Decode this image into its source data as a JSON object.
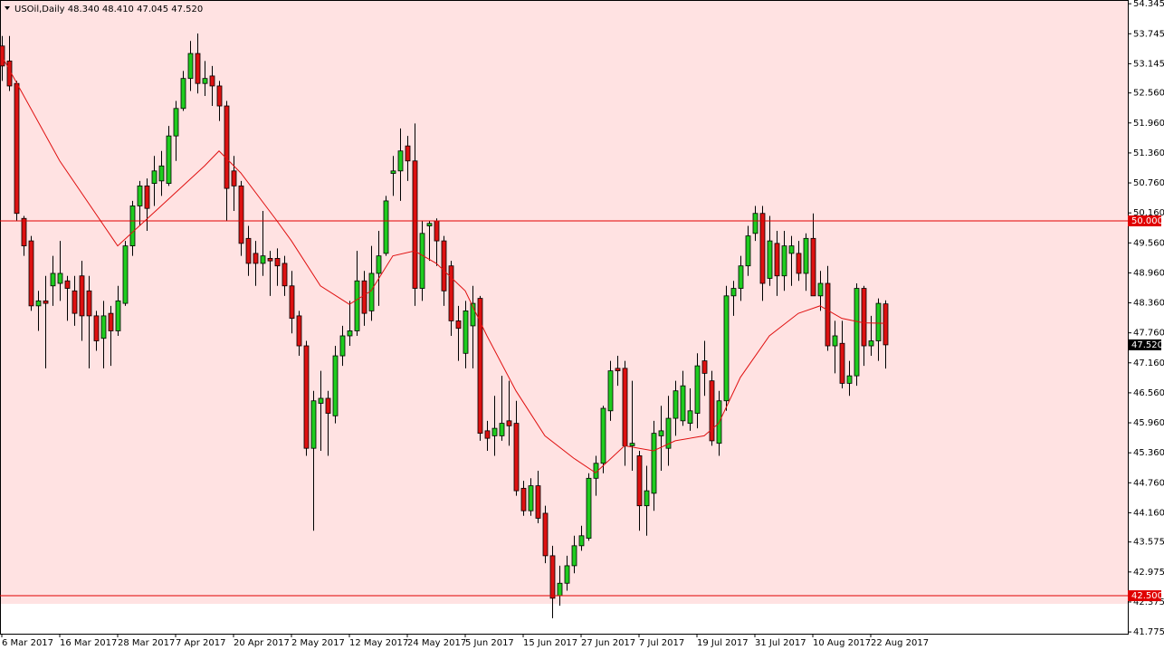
{
  "chart_data": {
    "type": "candlestick",
    "title": "USOil,Daily  48.340 48.410 47.045 47.520",
    "categories": [
      "6 Mar 2017",
      null,
      null,
      null,
      null,
      null,
      null,
      null,
      "16 Mar 2017",
      null,
      null,
      null,
      null,
      null,
      null,
      null,
      "28 Mar 2017",
      null,
      null,
      null,
      null,
      null,
      null,
      null,
      "7 Apr 2017",
      null,
      null,
      null,
      null,
      null,
      null,
      null,
      "20 Apr 2017",
      null,
      null,
      null,
      null,
      null,
      null,
      null,
      "2 May 2017",
      null,
      null,
      null,
      null,
      null,
      null,
      null,
      "12 May 2017",
      null,
      null,
      null,
      null,
      null,
      null,
      null,
      "24 May 2017",
      null,
      null,
      null,
      null,
      null,
      null,
      null,
      "5 Jun 2017",
      null,
      null,
      null,
      null,
      null,
      null,
      null,
      "15 Jun 2017",
      null,
      null,
      null,
      null,
      null,
      null,
      null,
      "27 Jun 2017",
      null,
      null,
      null,
      null,
      null,
      null,
      null,
      "7 Jul 2017",
      null,
      null,
      null,
      null,
      null,
      null,
      null,
      "19 Jul 2017",
      null,
      null,
      null,
      null,
      null,
      null,
      null,
      "31 Jul 2017",
      null,
      null,
      null,
      null,
      null,
      null,
      null,
      "10 Aug 2017",
      null,
      null,
      null,
      null,
      null,
      null,
      null,
      "22 Aug 2017",
      null,
      null
    ],
    "open": [
      53.5,
      53.2,
      52.75,
      50.05,
      49.6,
      48.3,
      48.4,
      48.7,
      48.75,
      48.8,
      48.6,
      48.9,
      48.6,
      48.1,
      47.65,
      48.15,
      47.8,
      48.35,
      49.5,
      50.3,
      50.7,
      50.75,
      50.8,
      50.75,
      51.7,
      52.25,
      52.85,
      53.35,
      52.75,
      52.9,
      52.7,
      52.3,
      51.0,
      50.7,
      49.65,
      49.35,
      49.15,
      49.25,
      49.25,
      49.15,
      48.7,
      48.1,
      47.5,
      45.45,
      46.35,
      46.45,
      46.1,
      47.3,
      47.7,
      47.8,
      48.8,
      48.2,
      48.95,
      49.35,
      50.95,
      51.0,
      51.5,
      51.2,
      48.65,
      49.9,
      50.0,
      49.6,
      49.1,
      48.0,
      47.35,
      47.9,
      48.45,
      45.8,
      45.7,
      45.7,
      46.0,
      45.95,
      44.65,
      44.2,
      44.7,
      44.15,
      43.3,
      42.5,
      42.75,
      43.1,
      43.5,
      43.65,
      44.85,
      45.15,
      46.2,
      47.05,
      47.05,
      45.5,
      45.3,
      44.3,
      44.55,
      45.7,
      45.45,
      46.05,
      46.0,
      45.95,
      46.15,
      47.2,
      46.8,
      45.55,
      46.4,
      48.5,
      48.65,
      49.1,
      49.75,
      50.15,
      48.85,
      49.55,
      48.9,
      49.35,
      49.35,
      48.95,
      49.65,
      48.5,
      48.75,
      47.5,
      47.55,
      46.75,
      46.9,
      48.65,
      47.5,
      47.6,
      48.34
    ],
    "high": [
      53.7,
      53.7,
      52.8,
      50.1,
      49.7,
      48.6,
      48.9,
      49.3,
      49.6,
      48.9,
      48.9,
      49.2,
      48.9,
      48.2,
      48.4,
      48.3,
      48.7,
      49.6,
      50.4,
      50.8,
      50.85,
      51.3,
      51.4,
      51.9,
      52.4,
      53.0,
      53.6,
      53.75,
      53.2,
      53.1,
      52.8,
      52.4,
      51.3,
      50.8,
      49.9,
      49.6,
      50.2,
      49.4,
      49.45,
      49.3,
      49.0,
      48.2,
      47.6,
      46.6,
      47.0,
      46.6,
      47.5,
      47.9,
      48.4,
      49.4,
      49.0,
      49.5,
      49.8,
      50.5,
      51.3,
      51.85,
      51.7,
      51.95,
      50.0,
      50.0,
      50.05,
      49.7,
      49.2,
      48.3,
      48.4,
      48.7,
      48.5,
      46.0,
      46.5,
      46.9,
      46.8,
      46.4,
      44.8,
      44.85,
      45.0,
      44.3,
      43.5,
      43.1,
      43.3,
      43.7,
      43.9,
      44.95,
      45.3,
      46.3,
      47.2,
      47.3,
      47.2,
      46.8,
      45.4,
      45.1,
      46.0,
      46.3,
      46.5,
      46.8,
      47.0,
      46.65,
      47.35,
      47.6,
      47.0,
      46.6,
      48.7,
      48.8,
      49.3,
      49.9,
      50.3,
      50.3,
      50.1,
      49.8,
      49.8,
      49.7,
      49.6,
      49.75,
      50.15,
      49.0,
      49.1,
      48.0,
      48.0,
      47.2,
      48.75,
      48.7,
      48.1,
      48.45,
      48.41
    ],
    "low": [
      52.8,
      52.6,
      50.0,
      49.3,
      48.2,
      47.8,
      47.05,
      48.3,
      48.4,
      48.0,
      47.9,
      47.6,
      47.05,
      47.4,
      47.05,
      47.1,
      47.7,
      48.3,
      49.3,
      49.9,
      49.8,
      50.3,
      50.5,
      50.7,
      51.2,
      52.2,
      52.6,
      52.55,
      52.5,
      52.3,
      52.0,
      50.0,
      50.2,
      49.3,
      48.9,
      48.7,
      48.9,
      48.5,
      48.7,
      48.5,
      47.75,
      47.3,
      45.3,
      43.8,
      45.4,
      45.3,
      45.95,
      47.1,
      47.5,
      47.7,
      47.9,
      48.0,
      48.3,
      49.3,
      50.5,
      50.4,
      50.8,
      48.3,
      48.4,
      49.2,
      49.1,
      48.3,
      47.7,
      47.2,
      47.05,
      47.05,
      45.6,
      45.4,
      45.3,
      45.6,
      45.5,
      44.5,
      44.1,
      44.1,
      43.95,
      43.15,
      42.05,
      42.3,
      42.6,
      42.95,
      43.4,
      43.6,
      44.5,
      44.95,
      46.0,
      46.7,
      45.1,
      45.0,
      43.8,
      43.7,
      44.2,
      45.0,
      45.1,
      45.7,
      45.9,
      45.8,
      45.85,
      46.5,
      45.5,
      45.3,
      46.2,
      48.1,
      48.4,
      48.9,
      49.6,
      48.4,
      48.7,
      48.5,
      48.6,
      48.7,
      48.8,
      48.6,
      48.5,
      48.2,
      47.4,
      46.95,
      46.65,
      46.5,
      46.7,
      47.1,
      47.3,
      47.2,
      47.045
    ],
    "close": [
      53.1,
      52.7,
      50.15,
      49.5,
      48.3,
      48.4,
      48.35,
      48.95,
      48.95,
      48.65,
      48.15,
      48.1,
      48.1,
      47.6,
      48.1,
      47.8,
      48.4,
      49.5,
      50.3,
      50.7,
      50.25,
      51.0,
      51.1,
      51.7,
      52.25,
      52.85,
      53.35,
      52.75,
      52.85,
      52.7,
      52.3,
      50.65,
      50.7,
      49.55,
      49.15,
      49.15,
      49.3,
      49.2,
      49.1,
      48.7,
      48.05,
      47.5,
      45.45,
      46.4,
      46.45,
      46.15,
      47.3,
      47.7,
      47.8,
      48.8,
      48.15,
      48.95,
      49.3,
      50.4,
      51.0,
      51.4,
      51.2,
      48.65,
      49.75,
      49.95,
      49.6,
      48.6,
      48.0,
      47.85,
      48.2,
      48.35,
      45.75,
      45.65,
      45.85,
      45.95,
      45.9,
      44.6,
      44.2,
      44.7,
      44.05,
      43.3,
      42.45,
      42.75,
      43.1,
      43.5,
      43.7,
      44.85,
      45.15,
      46.25,
      47.0,
      47.0,
      45.5,
      45.55,
      44.3,
      44.6,
      45.75,
      45.8,
      46.05,
      46.6,
      46.7,
      46.2,
      47.1,
      46.95,
      45.6,
      46.4,
      48.5,
      48.65,
      49.1,
      49.7,
      50.15,
      48.75,
      49.6,
      48.9,
      49.5,
      49.5,
      48.95,
      49.65,
      48.5,
      48.75,
      47.5,
      47.7,
      46.75,
      46.9,
      48.65,
      47.5,
      47.6,
      48.35,
      47.52
    ],
    "up_color": "#1fcc1f",
    "down_color": "#dd1111",
    "ma": {
      "color": "#e01010",
      "x": [
        0,
        8,
        16,
        22,
        28,
        30,
        33,
        38,
        40,
        44,
        48,
        51,
        54,
        57,
        60,
        64,
        67,
        71,
        75,
        79,
        82,
        86,
        90,
        93,
        97,
        99,
        102,
        106,
        110,
        113,
        116,
        119,
        122
      ],
      "values": [
        53.3,
        51.2,
        49.5,
        50.3,
        51.1,
        51.4,
        50.96,
        50.0,
        49.6,
        48.7,
        48.33,
        48.6,
        49.3,
        49.4,
        49.15,
        48.6,
        47.7,
        46.6,
        45.7,
        45.25,
        44.96,
        45.5,
        45.4,
        45.6,
        45.7,
        45.95,
        46.87,
        47.7,
        48.15,
        48.3,
        48.05,
        47.96,
        47.95
      ]
    },
    "hlines": [
      {
        "value": 50.0,
        "label": "50.000"
      },
      {
        "value": 42.5,
        "label": "42.500"
      }
    ],
    "current_price": {
      "value": 47.52,
      "label": "47.520"
    },
    "ylim": [
      41.74,
      54.42
    ],
    "yticks": [
      54.345,
      53.745,
      53.145,
      {
        "value": 52.56,
        "label": "52.560"
      },
      {
        "value": 51.96,
        "label": "51.960"
      },
      {
        "value": 51.36,
        "label": "51.360"
      },
      {
        "value": 50.76,
        "label": "50.760"
      },
      {
        "value": 50.16,
        "label": "50.160"
      },
      {
        "value": 49.56,
        "label": "49.560"
      },
      {
        "value": 48.96,
        "label": "48.960"
      },
      {
        "value": 48.36,
        "label": "48.360"
      },
      {
        "value": 47.76,
        "label": "47.760"
      },
      {
        "value": 47.16,
        "label": "47.160"
      },
      {
        "value": 46.56,
        "label": "46.560"
      },
      {
        "value": 45.96,
        "label": "45.960"
      },
      {
        "value": 45.36,
        "label": "45.360"
      },
      {
        "value": 44.76,
        "label": "44.760"
      },
      {
        "value": 44.16,
        "label": "44.160"
      },
      43.575,
      42.975,
      42.375,
      41.775
    ]
  }
}
